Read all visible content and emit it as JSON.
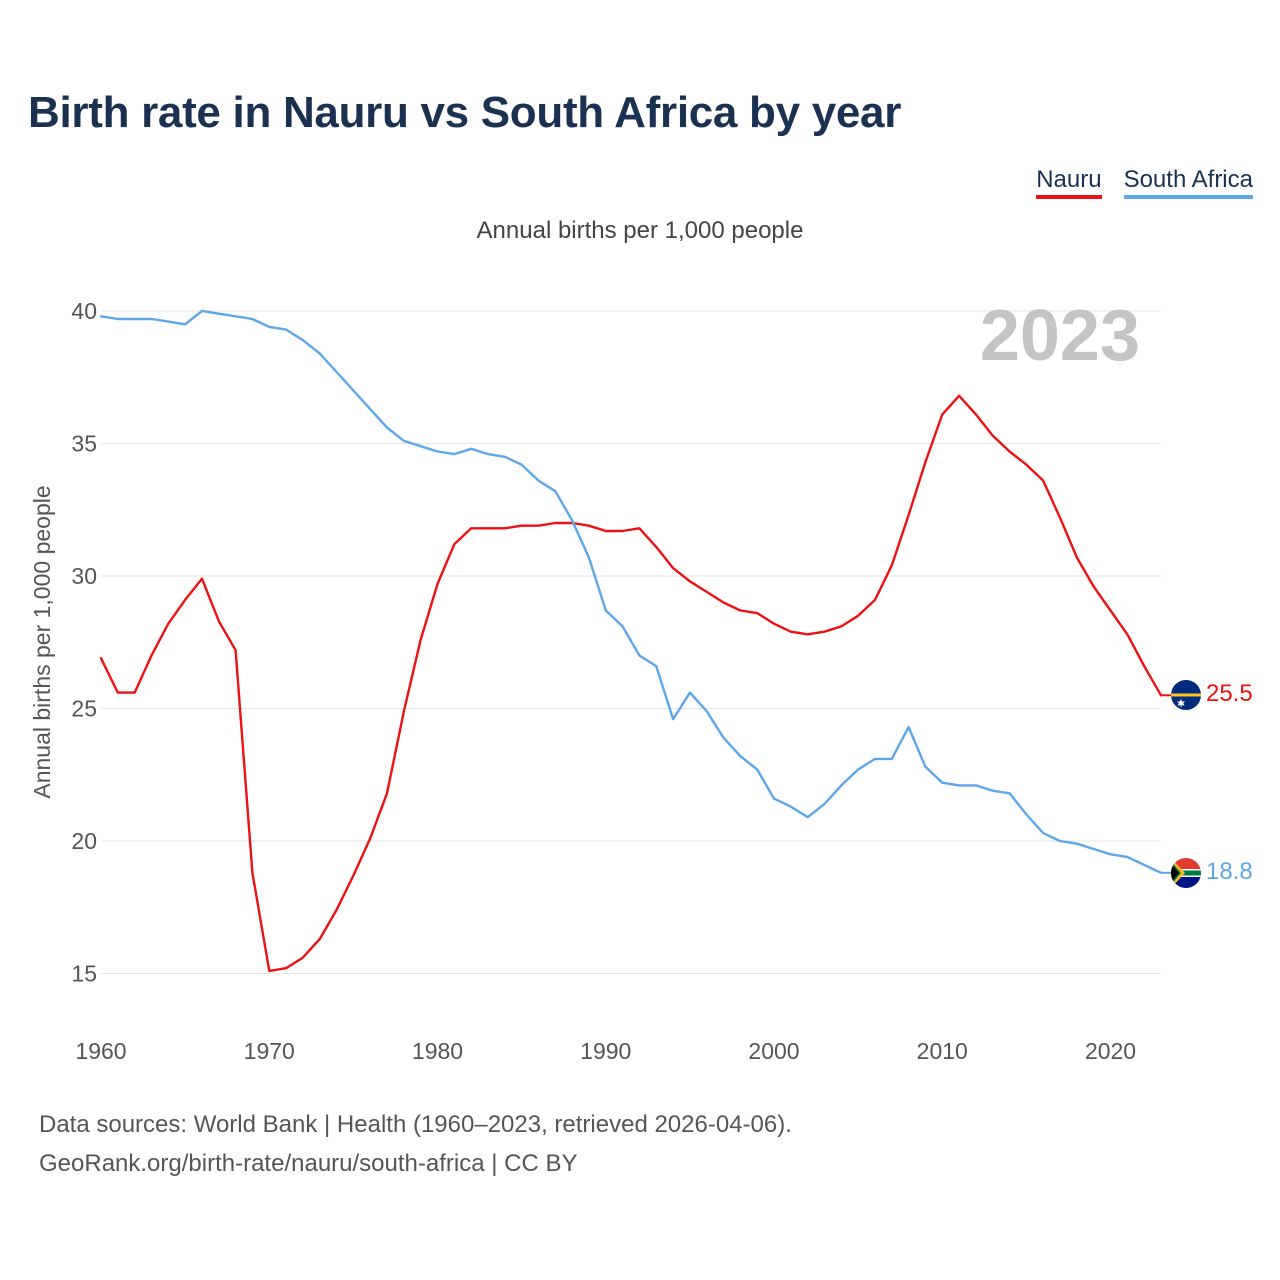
{
  "title": "Birth rate in Nauru vs South Africa by year",
  "legend": {
    "nauru": "Nauru",
    "south_africa": "South Africa"
  },
  "subtitle": "Annual births per 1,000 people",
  "year_label": "2023",
  "footer": {
    "line1": "Data sources: World Bank | Health (1960–2023, retrieved 2026-04-06).",
    "line2": "GeoRank.org/birth-rate/nauru/south-africa | CC BY"
  },
  "colors": {
    "nauru": "#ee1111",
    "south_africa": "#5ca6ea",
    "grid": "#e6e6e6",
    "axis_text": "#555555",
    "year": "#c4c4c4"
  },
  "chart_data": {
    "type": "line",
    "title": "Birth rate in Nauru vs South Africa by year",
    "subtitle": "Annual births per 1,000 people",
    "xlabel": "",
    "ylabel": "Annual births per 1,000 people",
    "xlim": [
      1960,
      2023
    ],
    "ylim": [
      13.7,
      40.0
    ],
    "x_ticks": [
      1960,
      1970,
      1980,
      1990,
      2000,
      2010,
      2020
    ],
    "y_ticks": [
      15,
      20,
      25,
      30,
      35,
      40
    ],
    "grid": true,
    "x": [
      1960,
      1961,
      1962,
      1963,
      1964,
      1965,
      1966,
      1967,
      1968,
      1969,
      1970,
      1971,
      1972,
      1973,
      1974,
      1975,
      1976,
      1977,
      1978,
      1979,
      1980,
      1981,
      1982,
      1983,
      1984,
      1985,
      1986,
      1987,
      1988,
      1989,
      1990,
      1991,
      1992,
      1993,
      1994,
      1995,
      1996,
      1997,
      1998,
      1999,
      2000,
      2001,
      2002,
      2003,
      2004,
      2005,
      2006,
      2007,
      2008,
      2009,
      2010,
      2011,
      2012,
      2013,
      2014,
      2015,
      2016,
      2017,
      2018,
      2019,
      2020,
      2021,
      2022,
      2023
    ],
    "series": [
      {
        "name": "Nauru",
        "end_label": "25.5",
        "values": [
          26.9,
          25.6,
          25.6,
          27.0,
          28.2,
          29.1,
          29.9,
          28.3,
          27.2,
          18.8,
          15.1,
          15.2,
          15.6,
          16.3,
          17.4,
          18.7,
          20.1,
          21.8,
          24.9,
          27.6,
          29.7,
          31.2,
          31.8,
          31.8,
          31.8,
          31.9,
          31.9,
          32.0,
          32.0,
          31.9,
          31.7,
          31.7,
          31.8,
          31.1,
          30.3,
          29.8,
          29.4,
          29.0,
          28.7,
          28.6,
          28.2,
          27.9,
          27.8,
          27.9,
          28.1,
          28.5,
          29.1,
          30.4,
          32.3,
          34.3,
          36.1,
          36.8,
          36.1,
          35.3,
          34.7,
          34.2,
          33.6,
          32.2,
          30.7,
          29.6,
          28.7,
          27.8,
          26.6,
          25.5
        ]
      },
      {
        "name": "South Africa",
        "end_label": "18.8",
        "values": [
          39.8,
          39.7,
          39.7,
          39.7,
          39.6,
          39.5,
          40.0,
          39.9,
          39.8,
          39.7,
          39.4,
          39.3,
          38.9,
          38.4,
          37.7,
          37.0,
          36.3,
          35.6,
          35.1,
          34.9,
          34.7,
          34.6,
          34.8,
          34.6,
          34.5,
          34.2,
          33.6,
          33.2,
          32.1,
          30.7,
          28.7,
          28.1,
          27.0,
          26.6,
          24.6,
          25.6,
          24.9,
          23.9,
          23.2,
          22.7,
          21.6,
          21.3,
          20.9,
          21.4,
          22.1,
          22.7,
          23.1,
          23.1,
          24.3,
          22.8,
          22.2,
          22.1,
          22.1,
          21.9,
          21.8,
          21.0,
          20.3,
          20.0,
          19.9,
          19.7,
          19.5,
          19.4,
          19.1,
          18.8
        ]
      }
    ]
  }
}
